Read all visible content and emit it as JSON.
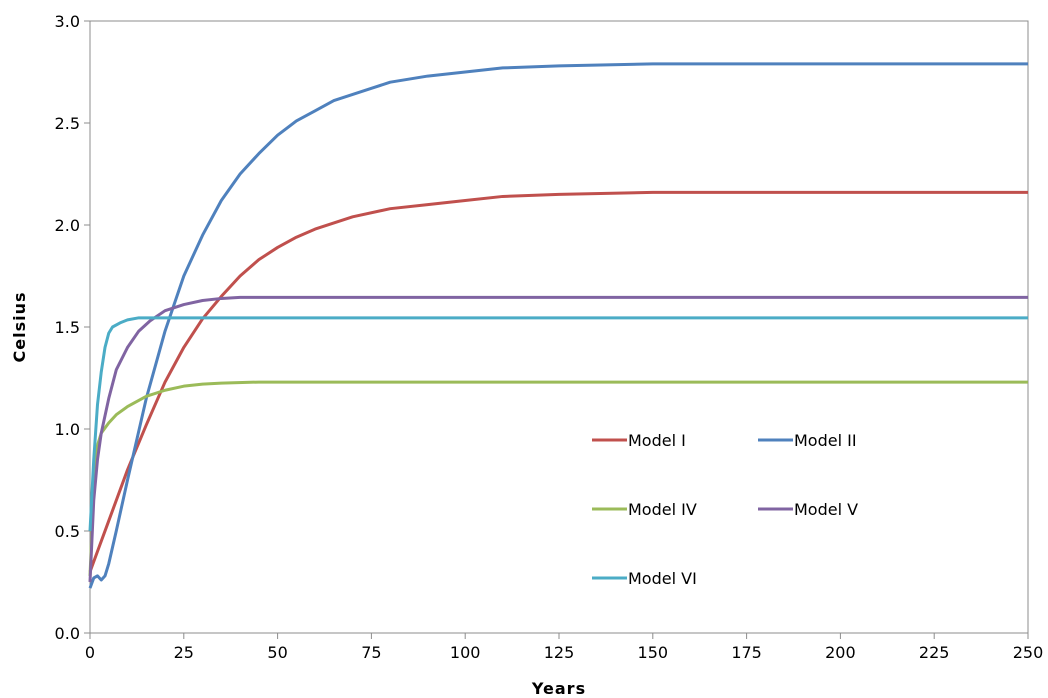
{
  "chart_data": {
    "type": "line",
    "xlabel": "Years",
    "ylabel": "Celsius",
    "xlim": [
      0,
      250
    ],
    "ylim": [
      0,
      3.0
    ],
    "xticks": [
      0,
      25,
      50,
      75,
      100,
      125,
      150,
      175,
      200,
      225,
      250
    ],
    "yticks": [
      "0.0",
      "0.5",
      "1.0",
      "1.5",
      "2.0",
      "2.5",
      "3.0"
    ],
    "grid": false,
    "legend_position": "inside-bottom-right",
    "series": [
      {
        "name": "Model I",
        "color": "#c0504d",
        "points": [
          [
            0,
            0.3
          ],
          [
            2,
            0.4
          ],
          [
            5,
            0.55
          ],
          [
            10,
            0.8
          ],
          [
            15,
            1.02
          ],
          [
            20,
            1.23
          ],
          [
            25,
            1.4
          ],
          [
            30,
            1.54
          ],
          [
            35,
            1.65
          ],
          [
            40,
            1.75
          ],
          [
            45,
            1.83
          ],
          [
            50,
            1.89
          ],
          [
            55,
            1.94
          ],
          [
            60,
            1.98
          ],
          [
            70,
            2.04
          ],
          [
            80,
            2.08
          ],
          [
            90,
            2.1
          ],
          [
            100,
            2.12
          ],
          [
            110,
            2.14
          ],
          [
            125,
            2.15
          ],
          [
            150,
            2.16
          ],
          [
            200,
            2.16
          ],
          [
            250,
            2.16
          ]
        ]
      },
      {
        "name": "Model II",
        "color": "#4f81bd",
        "points": [
          [
            0,
            0.22
          ],
          [
            1,
            0.27
          ],
          [
            2,
            0.28
          ],
          [
            3,
            0.26
          ],
          [
            4,
            0.28
          ],
          [
            5,
            0.34
          ],
          [
            7,
            0.5
          ],
          [
            10,
            0.75
          ],
          [
            15,
            1.15
          ],
          [
            20,
            1.48
          ],
          [
            25,
            1.75
          ],
          [
            30,
            1.95
          ],
          [
            35,
            2.12
          ],
          [
            40,
            2.25
          ],
          [
            45,
            2.35
          ],
          [
            50,
            2.44
          ],
          [
            55,
            2.51
          ],
          [
            60,
            2.56
          ],
          [
            65,
            2.61
          ],
          [
            70,
            2.64
          ],
          [
            75,
            2.67
          ],
          [
            80,
            2.7
          ],
          [
            90,
            2.73
          ],
          [
            100,
            2.75
          ],
          [
            110,
            2.77
          ],
          [
            125,
            2.78
          ],
          [
            150,
            2.79
          ],
          [
            200,
            2.79
          ],
          [
            250,
            2.79
          ]
        ]
      },
      {
        "name": "Model IV",
        "color": "#9bbb59",
        "points": [
          [
            0,
            0.28
          ],
          [
            0.5,
            0.5
          ],
          [
            1,
            0.8
          ],
          [
            2,
            0.92
          ],
          [
            3,
            0.98
          ],
          [
            5,
            1.03
          ],
          [
            7,
            1.07
          ],
          [
            10,
            1.11
          ],
          [
            15,
            1.16
          ],
          [
            20,
            1.19
          ],
          [
            25,
            1.21
          ],
          [
            30,
            1.22
          ],
          [
            35,
            1.225
          ],
          [
            45,
            1.23
          ],
          [
            100,
            1.23
          ],
          [
            250,
            1.23
          ]
        ]
      },
      {
        "name": "Model V",
        "color": "#8064a2",
        "points": [
          [
            0,
            0.25
          ],
          [
            0.5,
            0.45
          ],
          [
            1,
            0.65
          ],
          [
            2,
            0.85
          ],
          [
            3,
            0.98
          ],
          [
            5,
            1.15
          ],
          [
            7,
            1.29
          ],
          [
            10,
            1.4
          ],
          [
            13,
            1.48
          ],
          [
            16,
            1.53
          ],
          [
            20,
            1.58
          ],
          [
            25,
            1.61
          ],
          [
            30,
            1.63
          ],
          [
            35,
            1.64
          ],
          [
            40,
            1.645
          ],
          [
            60,
            1.645
          ],
          [
            250,
            1.645
          ]
        ]
      },
      {
        "name": "Model VI",
        "color": "#4bacc6",
        "points": [
          [
            0,
            0.5
          ],
          [
            1,
            0.85
          ],
          [
            2,
            1.12
          ],
          [
            3,
            1.28
          ],
          [
            4,
            1.4
          ],
          [
            5,
            1.47
          ],
          [
            6,
            1.5
          ],
          [
            8,
            1.52
          ],
          [
            10,
            1.535
          ],
          [
            13,
            1.545
          ],
          [
            16,
            1.545
          ],
          [
            250,
            1.545
          ]
        ]
      }
    ]
  }
}
